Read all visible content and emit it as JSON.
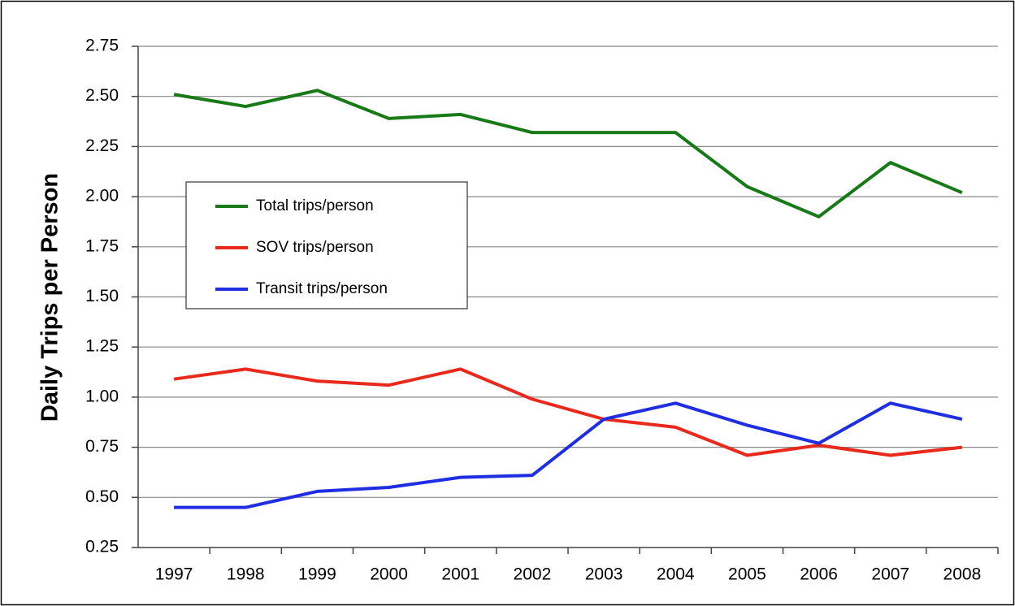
{
  "chart_data": {
    "type": "line",
    "y_label": "Daily Trips per Person",
    "categories": [
      "1997",
      "1998",
      "1999",
      "2000",
      "2001",
      "2002",
      "2003",
      "2004",
      "2005",
      "2006",
      "2007",
      "2008"
    ],
    "series": [
      {
        "name": "Total trips/person",
        "color": "#177a17",
        "values": [
          2.51,
          2.45,
          2.53,
          2.39,
          2.41,
          2.32,
          2.32,
          2.32,
          2.05,
          1.9,
          2.17,
          2.02
        ]
      },
      {
        "name": "SOV trips/person",
        "color": "#e8291c",
        "values": [
          1.09,
          1.14,
          1.08,
          1.06,
          1.14,
          0.99,
          0.89,
          0.85,
          0.71,
          0.76,
          0.71,
          0.75
        ]
      },
      {
        "name": "Transit trips/person",
        "color": "#1e2ee0",
        "values": [
          0.45,
          0.45,
          0.53,
          0.55,
          0.6,
          0.61,
          0.89,
          0.97,
          0.86,
          0.77,
          0.97,
          0.89
        ]
      }
    ],
    "ylim": [
      0.25,
      2.75
    ],
    "yticks": [
      {
        "value": 0.25,
        "label": "0.25"
      },
      {
        "value": 0.5,
        "label": "0.50"
      },
      {
        "value": 0.75,
        "label": "0.75"
      },
      {
        "value": 1,
        "label": "1.00"
      },
      {
        "value": 1.25,
        "label": "1.25"
      },
      {
        "value": 1.5,
        "label": "1.50"
      },
      {
        "value": 1.75,
        "label": "1.75"
      },
      {
        "value": 2,
        "label": "2.00"
      },
      {
        "value": 2.25,
        "label": "2.25"
      },
      {
        "value": 2.5,
        "label": "2.50"
      },
      {
        "value": 2.75,
        "label": "2.75"
      }
    ],
    "grid": true,
    "legend": "upper-left"
  }
}
